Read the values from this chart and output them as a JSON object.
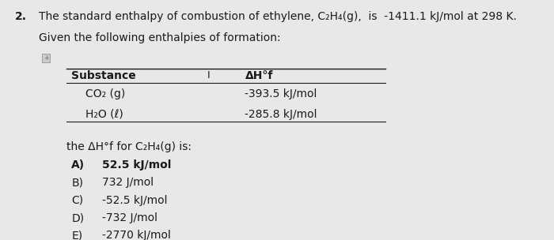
{
  "background_color": "#e8e8e8",
  "title_number": "2.",
  "line1": "The standard enthalpy of combustion of ethylene, C₂H₄(g),  is  -1411.1 kJ/mol at 298 K.",
  "line2": "Given the following enthalpies of formation:",
  "col1_header": "Substance",
  "col2_header": "I",
  "col3_header": "ΔH°f",
  "row1_sub": "CO₂ (g)",
  "row1_val": "-393.5 kJ/mol",
  "row2_sub": "H₂O (ℓ)",
  "row2_val": "-285.8 kJ/mol",
  "question_text": "the ΔH°f for C₂H₄(g) is:",
  "options": [
    {
      "label": "A)",
      "text": "52.5 kJ/mol",
      "bold": true
    },
    {
      "label": "B)",
      "text": "732 J/mol",
      "bold": false
    },
    {
      "label": "C)",
      "text": "-52.5 kJ/mol",
      "bold": false
    },
    {
      "label": "D)",
      "text": "-732 J/mol",
      "bold": false
    },
    {
      "label": "E)",
      "text": "-2770 kJ/mol",
      "bold": false
    }
  ],
  "text_color": "#1a1a1a",
  "header_fontsize": 10,
  "body_fontsize": 10
}
